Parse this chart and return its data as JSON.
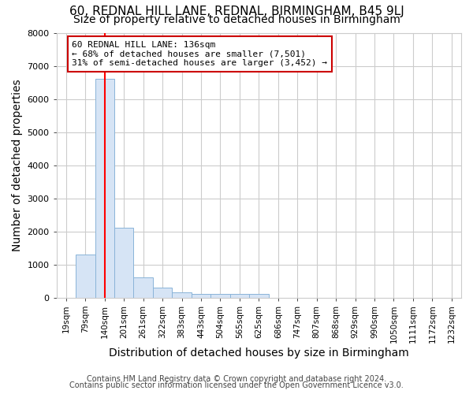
{
  "title": "60, REDNAL HILL LANE, REDNAL, BIRMINGHAM, B45 9LJ",
  "subtitle": "Size of property relative to detached houses in Birmingham",
  "xlabel": "Distribution of detached houses by size in Birmingham",
  "ylabel": "Number of detached properties",
  "footnote1": "Contains HM Land Registry data © Crown copyright and database right 2024.",
  "footnote2": "Contains public sector information licensed under the Open Government Licence v3.0.",
  "bin_labels": [
    "19sqm",
    "79sqm",
    "140sqm",
    "201sqm",
    "261sqm",
    "322sqm",
    "383sqm",
    "443sqm",
    "504sqm",
    "565sqm",
    "625sqm",
    "686sqm",
    "747sqm",
    "807sqm",
    "868sqm",
    "929sqm",
    "990sqm",
    "1050sqm",
    "1111sqm",
    "1172sqm",
    "1232sqm"
  ],
  "bar_values": [
    0,
    1300,
    6600,
    2100,
    620,
    300,
    150,
    100,
    100,
    100,
    100,
    0,
    0,
    0,
    0,
    0,
    0,
    0,
    0,
    0,
    0
  ],
  "bar_color": "#d6e4f5",
  "bar_edge_color": "#8ab4d8",
  "red_line_x": 2.0,
  "annotation_line1": "60 REDNAL HILL LANE: 136sqm",
  "annotation_line2": "← 68% of detached houses are smaller (7,501)",
  "annotation_line3": "31% of semi-detached houses are larger (3,452) →",
  "annotation_box_color": "#ffffff",
  "annotation_box_edge": "#cc0000",
  "ylim": [
    0,
    8000
  ],
  "yticks": [
    0,
    1000,
    2000,
    3000,
    4000,
    5000,
    6000,
    7000,
    8000
  ],
  "background_color": "#ffffff",
  "plot_bg_color": "#ffffff",
  "grid_color": "#cccccc",
  "title_fontsize": 11,
  "subtitle_fontsize": 10,
  "axis_label_fontsize": 10,
  "tick_fontsize": 7.5,
  "footnote_fontsize": 7
}
